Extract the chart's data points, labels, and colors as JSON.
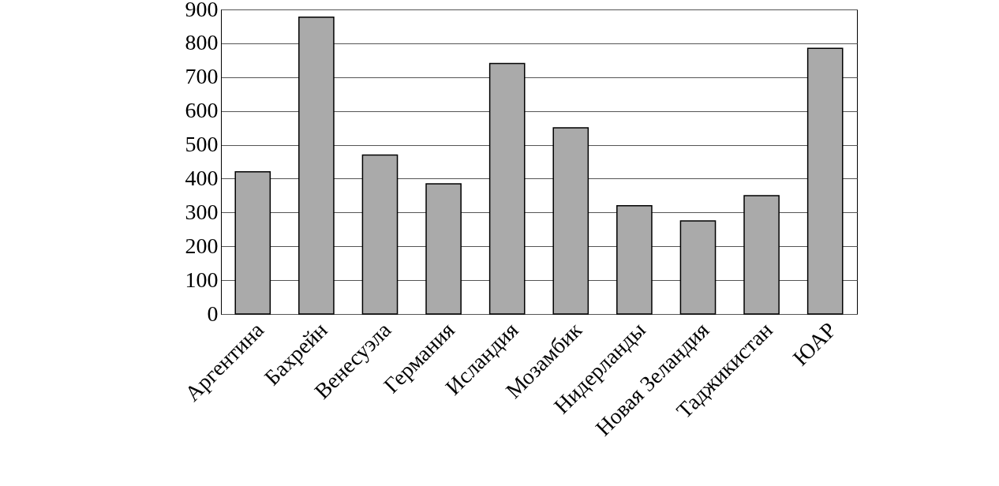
{
  "chart_data": {
    "type": "bar",
    "categories": [
      "Аргентина",
      "Бахрейн",
      "Венесуэла",
      "Германия",
      "Исландия",
      "Мозамбик",
      "Нидерланды",
      "Новая Зеландия",
      "Таджикистан",
      "ЮАР"
    ],
    "values": [
      420,
      877,
      470,
      385,
      740,
      550,
      320,
      275,
      350,
      785
    ],
    "color": "#aaaaaa",
    "ylim": [
      0,
      900
    ],
    "yticks": [
      0,
      100,
      200,
      300,
      400,
      500,
      600,
      700,
      800,
      900
    ],
    "grid": "y"
  }
}
